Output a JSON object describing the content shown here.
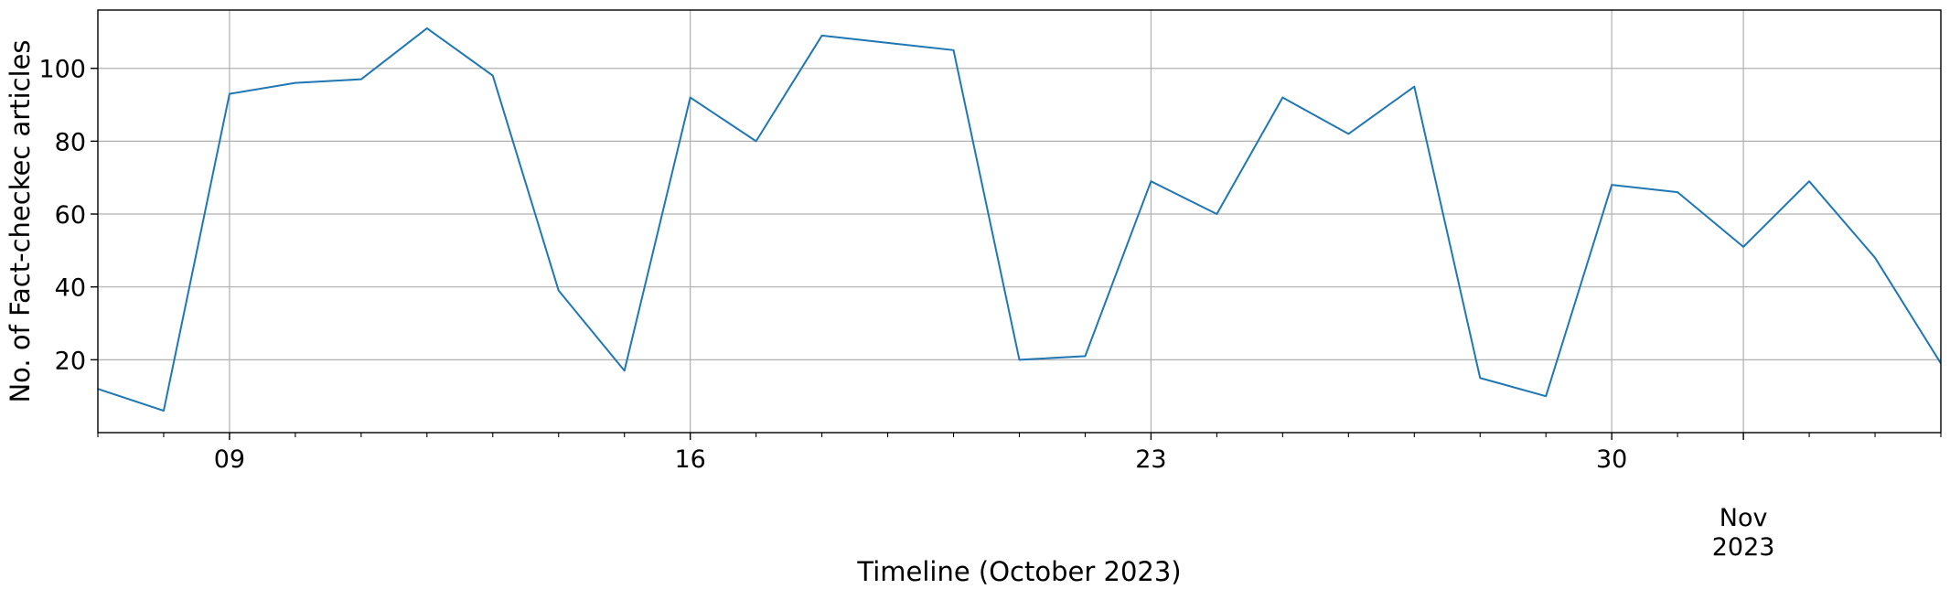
{
  "chart_data": {
    "type": "line",
    "title": "",
    "xlabel": "Timeline (October 2023)",
    "ylabel": "No. of Fact-checkec articles",
    "x": [
      "2023-10-07",
      "2023-10-08",
      "2023-10-09",
      "2023-10-10",
      "2023-10-11",
      "2023-10-12",
      "2023-10-13",
      "2023-10-14",
      "2023-10-15",
      "2023-10-16",
      "2023-10-17",
      "2023-10-18",
      "2023-10-19",
      "2023-10-20",
      "2023-10-21",
      "2023-10-22",
      "2023-10-23",
      "2023-10-24",
      "2023-10-25",
      "2023-10-26",
      "2023-10-27",
      "2023-10-28",
      "2023-10-29",
      "2023-10-30",
      "2023-10-31",
      "2023-11-01",
      "2023-11-02",
      "2023-11-03",
      "2023-11-04"
    ],
    "series": [
      {
        "values": [
          12,
          6,
          93,
          96,
          97,
          111,
          98,
          39,
          17,
          92,
          80,
          109,
          107,
          105,
          20,
          21,
          69,
          60,
          92,
          82,
          95,
          15,
          10,
          68,
          66,
          51,
          69,
          48,
          19
        ],
        "color": "#1f77b4"
      }
    ],
    "xlim": [
      "2023-10-07",
      "2023-11-04"
    ],
    "ylim": [
      0,
      116
    ],
    "yticks": [
      20,
      40,
      60,
      80,
      100
    ],
    "xtick_labels": [
      {
        "date": "2023-10-09",
        "label": "09"
      },
      {
        "date": "2023-10-16",
        "label": "16"
      },
      {
        "date": "2023-10-23",
        "label": "23"
      },
      {
        "date": "2023-10-30",
        "label": "30"
      },
      {
        "date": "2023-11-01",
        "label": "Nov",
        "sublabel": "2023"
      }
    ],
    "minor_tick_dates": [
      "2023-10-07",
      "2023-10-08",
      "2023-10-10",
      "2023-10-11",
      "2023-10-12",
      "2023-10-13",
      "2023-10-14",
      "2023-10-15",
      "2023-10-17",
      "2023-10-18",
      "2023-10-19",
      "2023-10-20",
      "2023-10-21",
      "2023-10-22",
      "2023-10-24",
      "2023-10-25",
      "2023-10-26",
      "2023-10-27",
      "2023-10-28",
      "2023-10-29",
      "2023-10-31",
      "2023-11-02",
      "2023-11-03",
      "2023-11-04"
    ],
    "grid": true,
    "legend": "none"
  }
}
